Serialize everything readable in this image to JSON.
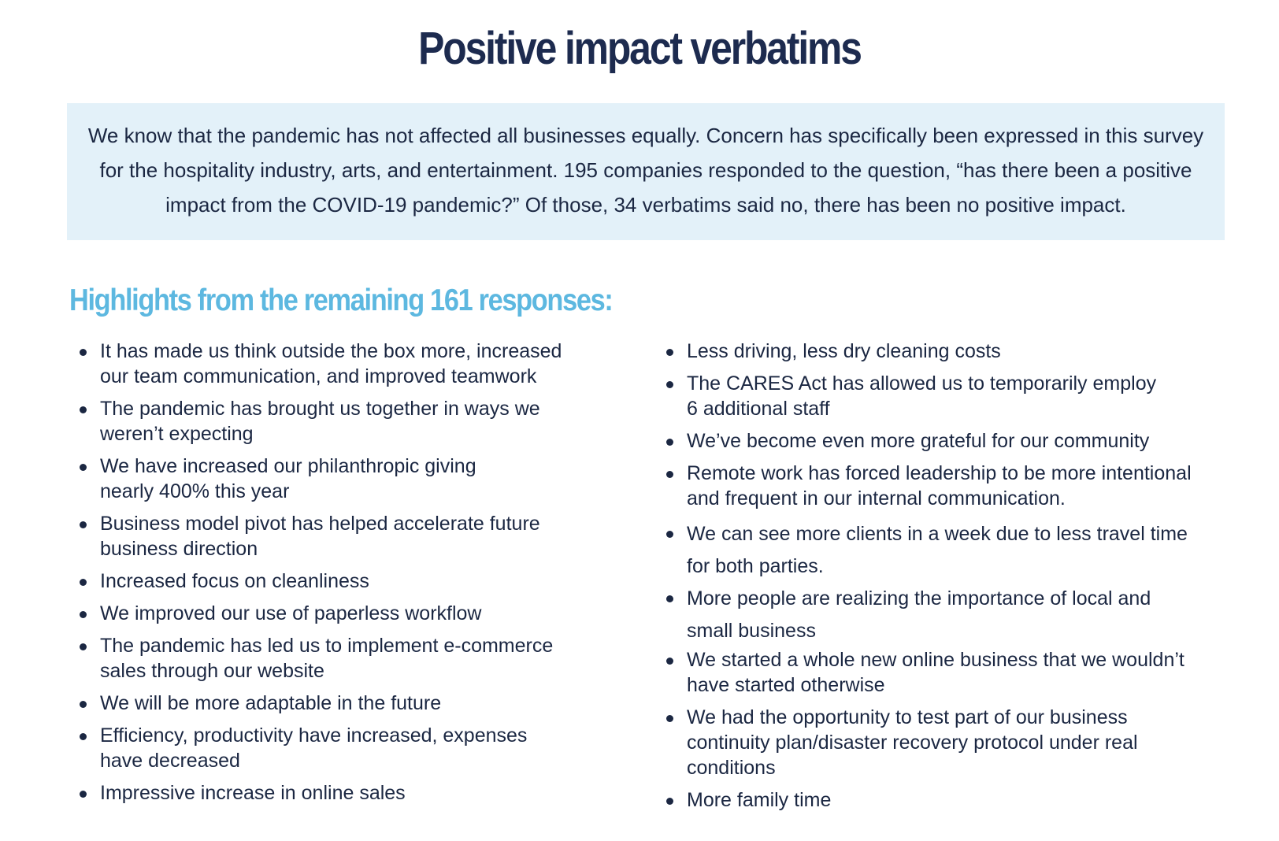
{
  "title": "Positive impact verbatims",
  "intro": "We know that the pandemic has not affected all businesses equally. Concern has specifically been expressed in this survey for the hospitality industry, arts, and entertainment. 195 companies responded to the question, “has there been a positive impact from the COVID-19 pandemic?” Of those, 34 verbatims said no, there has been no positive impact.",
  "subheading": "Highlights from the remaining 161 responses:",
  "left_items": [
    "It has made us think outside the box more, increased our team communication, and improved teamwork",
    "The pandemic has brought us together in ways we weren’t expecting",
    "We have increased our philanthropic giving nearly 400% this year",
    "Business model pivot has helped accelerate future business direction",
    "Increased focus on cleanliness",
    "We improved our use of paperless workflow",
    "The pandemic has led us to implement e-commerce sales through our website",
    "We will be more adaptable in the future",
    "Efficiency, productivity have increased, expenses have decreased",
    "Impressive increase in online sales"
  ],
  "right_items": [
    "Less driving, less dry cleaning costs",
    "The CARES Act has allowed us to temporarily employ 6 additional staff",
    "We’ve become even more grateful for our community",
    "Remote work has forced leadership to be more intentional and frequent in our internal communication.",
    "We can see more clients in a week due to less travel time for both parties.",
    "More people are realizing the importance of local and small business",
    "We started a whole new online business that we wouldn’t have started otherwise",
    "We had the opportunity to test part of our business continuity plan/disaster recovery protocol under real conditions",
    "More family time"
  ]
}
